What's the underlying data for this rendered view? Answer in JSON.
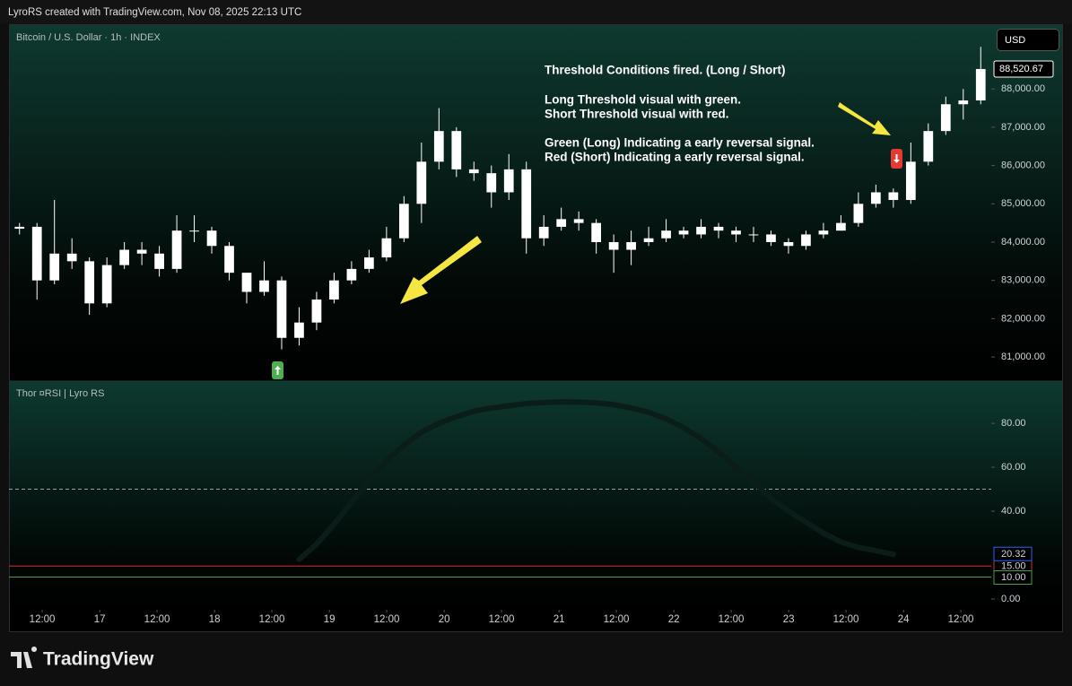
{
  "header": {
    "credit": "LyroRS created with TradingView.com, Nov 08, 2025 22:13 UTC",
    "currency": "USD",
    "logo": "TradingView"
  },
  "annotations": [
    "Threshold Conditions fired. (Long / Short)",
    "Long Threshold visual with green.",
    "Short Threshold visual with red.",
    "Green (Long) Indicating a early reversal signal.",
    "Red (Short) Indicating a early reversal signal."
  ],
  "chart_data": [
    {
      "type": "candlestick",
      "title": "Bitcoin / U.S. Dollar · 1h · INDEX",
      "color": "#ffffff",
      "xlim": [
        -0.5,
        55.5
      ],
      "xticks": [
        {
          "value": 1.3,
          "label": "12:00"
        },
        {
          "value": 4.59,
          "label": "17"
        },
        {
          "value": 7.87,
          "label": "12:00"
        },
        {
          "value": 11.16,
          "label": "18"
        },
        {
          "value": 14.44,
          "label": "12:00"
        },
        {
          "value": 17.73,
          "label": "19"
        },
        {
          "value": 21.01,
          "label": "12:00"
        },
        {
          "value": 24.3,
          "label": "20"
        },
        {
          "value": 27.58,
          "label": "12:00"
        },
        {
          "value": 30.87,
          "label": "21"
        },
        {
          "value": 34.15,
          "label": "12:00"
        },
        {
          "value": 37.44,
          "label": "22"
        },
        {
          "value": 40.72,
          "label": "12:00"
        },
        {
          "value": 44.01,
          "label": "23"
        },
        {
          "value": 47.29,
          "label": "12:00"
        },
        {
          "value": 50.58,
          "label": "24"
        },
        {
          "value": 53.86,
          "label": "12:00"
        }
      ],
      "ylim": [
        80370,
        89620
      ],
      "yticks": [
        {
          "value": 88000,
          "label": "88,000.00"
        },
        {
          "value": 87000,
          "label": "87,000.00"
        },
        {
          "value": 86000,
          "label": "86,000.00"
        },
        {
          "value": 85000,
          "label": "85,000.00"
        },
        {
          "value": 84000,
          "label": "84,000.00"
        },
        {
          "value": 83000,
          "label": "83,000.00"
        },
        {
          "value": 82000,
          "label": "82,000.00"
        },
        {
          "value": 81000,
          "label": "81,000.00"
        }
      ],
      "open": [
        84350,
        84400,
        83000,
        83700,
        83500,
        82400,
        83400,
        83800,
        83700,
        83300,
        84300,
        84300,
        83900,
        83200,
        82700,
        83000,
        81500,
        81900,
        82500,
        83000,
        83300,
        83600,
        84100,
        85000,
        86100,
        86900,
        85900,
        85800,
        85300,
        85900,
        84100,
        84400,
        84600,
        84500,
        84000,
        83800,
        84000,
        84100,
        84300,
        84200,
        84400,
        84300,
        84200,
        84200,
        84000,
        83900,
        84200,
        84300,
        84500,
        85000,
        85300,
        85100,
        86100,
        86900,
        87600,
        87700
      ],
      "high": [
        84500,
        84500,
        85100,
        84100,
        83600,
        83600,
        84000,
        84000,
        83900,
        84700,
        84700,
        84400,
        84000,
        83200,
        83500,
        83100,
        82300,
        82700,
        83200,
        83500,
        83800,
        84400,
        85200,
        86600,
        87500,
        87000,
        86100,
        86000,
        86300,
        86100,
        84700,
        84900,
        84800,
        84600,
        84200,
        84300,
        84400,
        84600,
        84400,
        84600,
        84500,
        84400,
        84400,
        84300,
        84100,
        84300,
        84500,
        84700,
        85300,
        85500,
        85400,
        86600,
        87100,
        87800,
        88000,
        89100
      ],
      "low": [
        84200,
        82500,
        82900,
        83300,
        82100,
        82300,
        83300,
        83400,
        83100,
        83200,
        84000,
        83700,
        83000,
        82400,
        82600,
        81200,
        81300,
        81700,
        82400,
        82900,
        83200,
        83500,
        84000,
        84500,
        85900,
        85700,
        85600,
        84900,
        85100,
        83700,
        83900,
        84300,
        84300,
        83700,
        83200,
        83400,
        83900,
        84000,
        84100,
        84100,
        84100,
        84000,
        84000,
        83900,
        83700,
        83800,
        84100,
        84300,
        84400,
        84900,
        84900,
        85000,
        86000,
        86800,
        87200,
        87600
      ],
      "close": [
        84400,
        83000,
        83700,
        83500,
        82400,
        83400,
        83800,
        83700,
        83300,
        84300,
        84300,
        83900,
        83200,
        82700,
        83000,
        81500,
        81900,
        82500,
        83000,
        83300,
        83600,
        84100,
        85000,
        86100,
        86900,
        85900,
        85800,
        85300,
        85900,
        84100,
        84400,
        84600,
        84500,
        84000,
        83800,
        84000,
        84100,
        84300,
        84200,
        84400,
        84300,
        84200,
        84200,
        84000,
        83900,
        84200,
        84300,
        84500,
        85000,
        85300,
        85100,
        86100,
        86900,
        87600,
        87700,
        88520.67
      ],
      "last_price_label": "88,520.67"
    },
    {
      "type": "line",
      "title": "Thor ¤RSI | Lyro RS",
      "xlim": [
        -0.5,
        55.5
      ],
      "ylim": [
        -4.9,
        98
      ],
      "yticks": [
        {
          "value": 80,
          "label": "80.00"
        },
        {
          "value": 60,
          "label": "60.00"
        },
        {
          "value": 40,
          "label": "40.00"
        },
        {
          "value": 0,
          "label": "0.00"
        }
      ],
      "series": [
        {
          "color": "#0b1d18",
          "values": [
            null,
            null,
            null,
            null,
            null,
            null,
            null,
            null,
            null,
            null,
            null,
            null,
            null,
            null,
            null,
            null,
            18,
            25,
            34,
            44,
            54,
            63,
            70,
            76,
            80,
            83,
            85.5,
            87,
            88,
            89,
            89.5,
            89.8,
            89.7,
            89.3,
            88.5,
            87,
            85,
            82,
            78,
            73,
            67,
            60,
            53,
            46,
            40,
            35,
            30,
            26,
            23.5,
            22,
            20.32,
            null,
            null,
            null,
            null,
            null
          ],
          "last_value_label": "20.32",
          "label_color": "#2962ff"
        }
      ],
      "levels": [
        {
          "value": 50,
          "color": "#9e9e9e",
          "dashed": true
        },
        {
          "value": 15,
          "label": "15.00",
          "color": "#d32f2f"
        },
        {
          "value": 10,
          "label": "10.00",
          "color": "#43a047"
        }
      ]
    }
  ]
}
